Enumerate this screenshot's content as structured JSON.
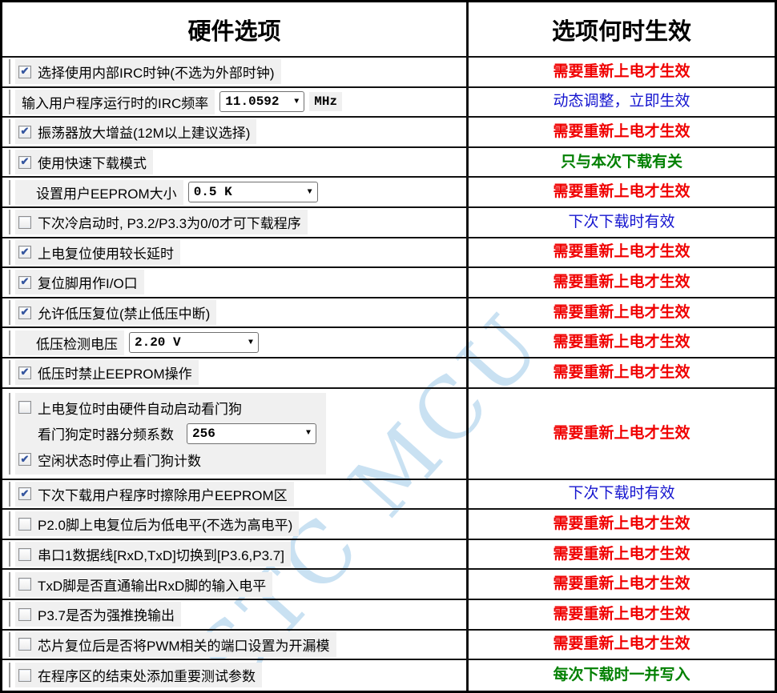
{
  "header": {
    "left": "硬件选项",
    "right": "选项何时生效"
  },
  "watermark": {
    "text": "STC MCU",
    "color": "#9ec9e8"
  },
  "icons": {
    "check": "✔",
    "chevron_down": "▼"
  },
  "effect_colors": {
    "red": {
      "hex": "#f00000",
      "bold": true
    },
    "blue": {
      "hex": "#1515cf",
      "bold": false
    },
    "green": {
      "hex": "#018001",
      "bold": true
    }
  },
  "rows": [
    {
      "type": "checkbox",
      "checked": true,
      "label": "选择使用内部IRC时钟(不选为外部时钟)",
      "effect": "需要重新上电才生效",
      "effect_color": "red"
    },
    {
      "type": "combo",
      "label": "输入用户程序运行时的IRC频率",
      "value": "11.0592",
      "suffix": "MHz",
      "effect": "动态调整，立即生效",
      "effect_color": "blue"
    },
    {
      "type": "checkbox",
      "checked": true,
      "label": "振荡器放大增益(12M以上建议选择)",
      "effect": "需要重新上电才生效",
      "effect_color": "red"
    },
    {
      "type": "checkbox",
      "checked": true,
      "label": "使用快速下载模式",
      "effect": "只与本次下载有关",
      "effect_color": "green"
    },
    {
      "type": "combo",
      "indent": true,
      "label": "设置用户EEPROM大小",
      "value": "0.5 K",
      "effect": "需要重新上电才生效",
      "effect_color": "red"
    },
    {
      "type": "checkbox",
      "checked": false,
      "label": "下次冷启动时, P3.2/P3.3为0/0才可下载程序",
      "effect": "下次下载时有效",
      "effect_color": "blue"
    },
    {
      "type": "checkbox",
      "checked": true,
      "label": "上电复位使用较长延时",
      "effect": "需要重新上电才生效",
      "effect_color": "red"
    },
    {
      "type": "checkbox",
      "checked": true,
      "label": "复位脚用作I/O口",
      "effect": "需要重新上电才生效",
      "effect_color": "red"
    },
    {
      "type": "checkbox",
      "checked": true,
      "label": "允许低压复位(禁止低压中断)",
      "effect": "需要重新上电才生效",
      "effect_color": "red"
    },
    {
      "type": "combo",
      "indent": true,
      "label": "低压检测电压",
      "value": "2.20 V",
      "effect": "需要重新上电才生效",
      "effect_color": "red"
    },
    {
      "type": "checkbox",
      "checked": true,
      "label": "低压时禁止EEPROM操作",
      "effect": "需要重新上电才生效",
      "effect_color": "red"
    },
    {
      "type": "group",
      "items": [
        {
          "type": "checkbox",
          "checked": false,
          "label": "上电复位时由硬件自动启动看门狗"
        },
        {
          "type": "combo",
          "label": "看门狗定时器分频系数",
          "value": "256"
        },
        {
          "type": "checkbox",
          "checked": true,
          "label": "空闲状态时停止看门狗计数"
        }
      ],
      "effect": "需要重新上电才生效",
      "effect_color": "red"
    },
    {
      "type": "checkbox",
      "checked": true,
      "label": "下次下载用户程序时擦除用户EEPROM区",
      "effect": "下次下载时有效",
      "effect_color": "blue"
    },
    {
      "type": "checkbox",
      "checked": false,
      "label": "P2.0脚上电复位后为低电平(不选为高电平)",
      "effect": "需要重新上电才生效",
      "effect_color": "red"
    },
    {
      "type": "checkbox",
      "checked": false,
      "label": "串口1数据线[RxD,TxD]切换到[P3.6,P3.7]",
      "effect": "需要重新上电才生效",
      "effect_color": "red"
    },
    {
      "type": "checkbox",
      "checked": false,
      "label": "TxD脚是否直通输出RxD脚的输入电平",
      "effect": "需要重新上电才生效",
      "effect_color": "red"
    },
    {
      "type": "checkbox",
      "checked": false,
      "label": "P3.7是否为强推挽输出",
      "effect": "需要重新上电才生效",
      "effect_color": "red"
    },
    {
      "type": "checkbox",
      "checked": false,
      "label": "芯片复位后是否将PWM相关的端口设置为开漏模",
      "effect": "需要重新上电才生效",
      "effect_color": "red"
    },
    {
      "type": "checkbox",
      "checked": false,
      "label": "在程序区的结束处添加重要测试参数",
      "effect": "每次下载时一并写入",
      "effect_color": "green"
    }
  ]
}
